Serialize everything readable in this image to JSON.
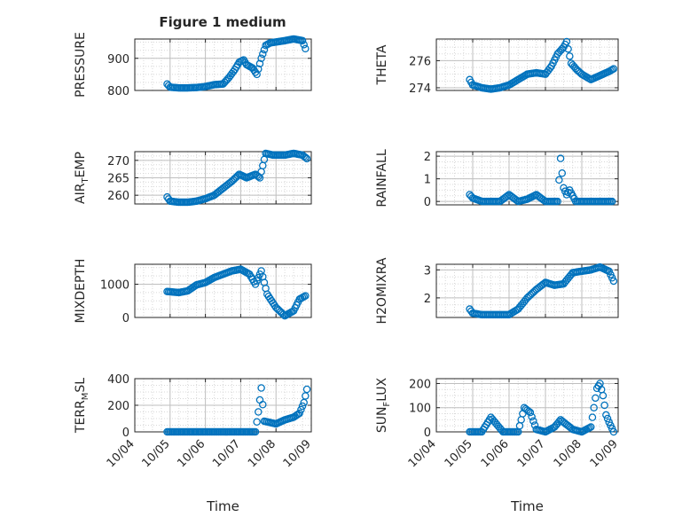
{
  "figure": {
    "title": "Figure 1 medium"
  },
  "colors": {
    "marker": "#0072BD",
    "axis": "#262626",
    "grid": "#bfbfbf",
    "background": "#ffffff"
  },
  "chart_data": [
    {
      "type": "scatter",
      "title": "Figure 1 medium",
      "ylabel": "PRESSURE",
      "xlabel": "",
      "xlim": [
        "10/04",
        "10/09"
      ],
      "ylim": [
        800,
        960
      ],
      "yticks": [
        800,
        900
      ],
      "ytick_labels": [
        "800",
        "900"
      ],
      "grid": true,
      "minor_grid": true,
      "series": [
        {
          "marker": "circle",
          "values": [
            [
              "10/04 22:00",
              820
            ],
            [
              "10/05 00:00",
              810
            ],
            [
              "10/05 06:00",
              808
            ],
            [
              "10/05 12:00",
              808
            ],
            [
              "10/05 18:00",
              809
            ],
            [
              "10/06 00:00",
              812
            ],
            [
              "10/06 06:00",
              818
            ],
            [
              "10/06 12:00",
              820
            ],
            [
              "10/06 16:00",
              840
            ],
            [
              "10/06 20:00",
              865
            ],
            [
              "10/06 23:00",
              888
            ],
            [
              "10/07 02:00",
              895
            ],
            [
              "10/07 04:00",
              880
            ],
            [
              "10/07 08:00",
              870
            ],
            [
              "10/07 11:00",
              850
            ],
            [
              "10/07 14:00",
              900
            ],
            [
              "10/07 17:00",
              940
            ],
            [
              "10/07 20:00",
              948
            ],
            [
              "10/07 23:00",
              950
            ],
            [
              "10/08 06:00",
              955
            ],
            [
              "10/08 12:00",
              960
            ],
            [
              "10/08 18:00",
              955
            ],
            [
              "10/08 20:00",
              930
            ]
          ]
        }
      ]
    },
    {
      "type": "scatter",
      "ylabel": "THETA",
      "xlabel": "",
      "xlim": [
        "10/04",
        "10/09"
      ],
      "ylim": [
        273.8,
        277.6
      ],
      "yticks": [
        274,
        276
      ],
      "ytick_labels": [
        "274",
        "276"
      ],
      "grid": true,
      "minor_grid": true,
      "series": [
        {
          "marker": "circle",
          "values": [
            [
              "10/04 22:00",
              274.6
            ],
            [
              "10/05 00:00",
              274.2
            ],
            [
              "10/05 06:00",
              274.0
            ],
            [
              "10/05 12:00",
              273.9
            ],
            [
              "10/05 18:00",
              274.0
            ],
            [
              "10/06 00:00",
              274.2
            ],
            [
              "10/06 06:00",
              274.6
            ],
            [
              "10/06 12:00",
              275.0
            ],
            [
              "10/06 18:00",
              275.1
            ],
            [
              "10/07 00:00",
              275.0
            ],
            [
              "10/07 04:00",
              275.6
            ],
            [
              "10/07 08:00",
              276.5
            ],
            [
              "10/07 12:00",
              277.0
            ],
            [
              "10/07 14:00",
              277.4
            ],
            [
              "10/07 17:00",
              275.8
            ],
            [
              "10/07 21:00",
              275.3
            ],
            [
              "10/08 00:00",
              275.0
            ],
            [
              "10/08 06:00",
              274.6
            ],
            [
              "10/08 12:00",
              274.9
            ],
            [
              "10/08 18:00",
              275.2
            ],
            [
              "10/08 21:00",
              275.4
            ]
          ]
        }
      ]
    },
    {
      "type": "scatter",
      "ylabel": "AIR_TEMP",
      "ylabel_main": "AIR",
      "ylabel_sub": "T",
      "ylabel_rest": "EMP",
      "xlabel": "",
      "xlim": [
        "10/04",
        "10/09"
      ],
      "ylim": [
        257.5,
        272.5
      ],
      "yticks": [
        260,
        265,
        270
      ],
      "ytick_labels": [
        "260",
        "265",
        "270"
      ],
      "grid": true,
      "minor_grid": true,
      "series": [
        {
          "marker": "circle",
          "values": [
            [
              "10/04 22:00",
              259.5
            ],
            [
              "10/05 00:00",
              258.3
            ],
            [
              "10/05 06:00",
              258.0
            ],
            [
              "10/05 12:00",
              258.0
            ],
            [
              "10/05 18:00",
              258.3
            ],
            [
              "10/06 00:00",
              259.0
            ],
            [
              "10/06 06:00",
              260.0
            ],
            [
              "10/06 12:00",
              262.0
            ],
            [
              "10/06 18:00",
              264.0
            ],
            [
              "10/06 23:00",
              266.0
            ],
            [
              "10/07 04:00",
              265.0
            ],
            [
              "10/07 10:00",
              266.0
            ],
            [
              "10/07 13:00",
              265.0
            ],
            [
              "10/07 17:00",
              272.0
            ],
            [
              "10/07 22:00",
              271.5
            ],
            [
              "10/08 06:00",
              271.5
            ],
            [
              "10/08 12:00",
              272.0
            ],
            [
              "10/08 18:00",
              271.5
            ],
            [
              "10/08 21:00",
              270.5
            ]
          ]
        }
      ]
    },
    {
      "type": "scatter",
      "ylabel": "RAINFALL",
      "xlabel": "",
      "xlim": [
        "10/04",
        "10/09"
      ],
      "ylim": [
        -0.15,
        2.2
      ],
      "yticks": [
        0,
        1,
        2
      ],
      "ytick_labels": [
        "0",
        "1",
        "2"
      ],
      "grid": true,
      "minor_grid": true,
      "series": [
        {
          "marker": "circle",
          "values": [
            [
              "10/04 22:00",
              0.3
            ],
            [
              "10/05 00:00",
              0.15
            ],
            [
              "10/05 06:00",
              0
            ],
            [
              "10/05 12:00",
              0
            ],
            [
              "10/05 18:00",
              0
            ],
            [
              "10/06 00:00",
              0.3
            ],
            [
              "10/06 06:00",
              0
            ],
            [
              "10/06 12:00",
              0.1
            ],
            [
              "10/06 18:00",
              0.3
            ],
            [
              "10/07 00:00",
              0
            ],
            [
              "10/07 08:00",
              0
            ],
            [
              "10/07 10:00",
              1.9
            ],
            [
              "10/07 12:00",
              0.6
            ],
            [
              "10/07 14:00",
              0.3
            ],
            [
              "10/07 16:00",
              0.5
            ],
            [
              "10/07 20:00",
              0
            ],
            [
              "10/08 06:00",
              0
            ],
            [
              "10/08 12:00",
              0
            ],
            [
              "10/08 20:00",
              0
            ]
          ]
        }
      ]
    },
    {
      "type": "scatter",
      "ylabel": "MIXDEPTH",
      "xlabel": "",
      "xlim": [
        "10/04",
        "10/09"
      ],
      "ylim": [
        0,
        1600
      ],
      "yticks": [
        0,
        1000
      ],
      "ytick_labels": [
        "0",
        "1000"
      ],
      "grid": true,
      "minor_grid": true,
      "series": [
        {
          "marker": "circle",
          "values": [
            [
              "10/04 22:00",
              780
            ],
            [
              "10/05 06:00",
              750
            ],
            [
              "10/05 12:00",
              800
            ],
            [
              "10/05 18:00",
              980
            ],
            [
              "10/06 00:00",
              1050
            ],
            [
              "10/06 06:00",
              1200
            ],
            [
              "10/06 12:00",
              1300
            ],
            [
              "10/06 18:00",
              1400
            ],
            [
              "10/07 00:00",
              1450
            ],
            [
              "10/07 06:00",
              1300
            ],
            [
              "10/07 10:00",
              1000
            ],
            [
              "10/07 14:00",
              1400
            ],
            [
              "10/07 18:00",
              700
            ],
            [
              "10/08 00:00",
              300
            ],
            [
              "10/08 06:00",
              50
            ],
            [
              "10/08 12:00",
              200
            ],
            [
              "10/08 16:00",
              550
            ],
            [
              "10/08 20:00",
              650
            ]
          ]
        }
      ]
    },
    {
      "type": "scatter",
      "ylabel": "H2OMIXRA",
      "xlabel": "",
      "xlim": [
        "10/04",
        "10/09"
      ],
      "ylim": [
        1.3,
        3.2
      ],
      "yticks": [
        2,
        3
      ],
      "ytick_labels": [
        "2",
        "3"
      ],
      "grid": true,
      "minor_grid": true,
      "series": [
        {
          "marker": "circle",
          "values": [
            [
              "10/04 22:00",
              1.6
            ],
            [
              "10/05 00:00",
              1.45
            ],
            [
              "10/05 06:00",
              1.4
            ],
            [
              "10/05 12:00",
              1.4
            ],
            [
              "10/05 18:00",
              1.4
            ],
            [
              "10/06 00:00",
              1.4
            ],
            [
              "10/06 06:00",
              1.6
            ],
            [
              "10/06 12:00",
              2.0
            ],
            [
              "10/06 18:00",
              2.3
            ],
            [
              "10/07 00:00",
              2.55
            ],
            [
              "10/07 06:00",
              2.45
            ],
            [
              "10/07 12:00",
              2.5
            ],
            [
              "10/07 18:00",
              2.9
            ],
            [
              "10/08 00:00",
              2.95
            ],
            [
              "10/08 06:00",
              3.0
            ],
            [
              "10/08 12:00",
              3.1
            ],
            [
              "10/08 18:00",
              2.95
            ],
            [
              "10/08 21:00",
              2.6
            ]
          ]
        }
      ]
    },
    {
      "type": "scatter",
      "ylabel": "TERR_MSL",
      "ylabel_main": "TERR",
      "ylabel_sub": "M",
      "ylabel_rest": "SL",
      "xlabel": "Time",
      "xlim": [
        "10/04",
        "10/09"
      ],
      "ylim": [
        0,
        400
      ],
      "xticks": [
        "10/04",
        "10/05",
        "10/06",
        "10/07",
        "10/08",
        "10/09"
      ],
      "yticks": [
        0,
        200,
        400
      ],
      "ytick_labels": [
        "0",
        "200",
        "400"
      ],
      "grid": true,
      "minor_grid": true,
      "series": [
        {
          "marker": "circle",
          "values": [
            [
              "10/04 22:00",
              0
            ],
            [
              "10/05 06:00",
              0
            ],
            [
              "10/05 12:00",
              0
            ],
            [
              "10/05 18:00",
              0
            ],
            [
              "10/06 00:00",
              0
            ],
            [
              "10/06 06:00",
              0
            ],
            [
              "10/06 12:00",
              0
            ],
            [
              "10/06 18:00",
              0
            ],
            [
              "10/07 00:00",
              0
            ],
            [
              "10/07 06:00",
              0
            ],
            [
              "10/07 10:00",
              0
            ],
            [
              "10/07 12:00",
              150
            ],
            [
              "10/07 14:00",
              330
            ],
            [
              "10/07 16:00",
              80
            ],
            [
              "10/08 00:00",
              60
            ],
            [
              "10/08 06:00",
              90
            ],
            [
              "10/08 12:00",
              110
            ],
            [
              "10/08 16:00",
              140
            ],
            [
              "10/08 19:00",
              220
            ],
            [
              "10/08 21:00",
              320
            ]
          ]
        }
      ]
    },
    {
      "type": "scatter",
      "ylabel": "SUN_FLUX",
      "ylabel_main": "SUN",
      "ylabel_sub": "F",
      "ylabel_rest": "LUX",
      "xlabel": "Time",
      "xlim": [
        "10/04",
        "10/09"
      ],
      "ylim": [
        0,
        220
      ],
      "xticks": [
        "10/04",
        "10/05",
        "10/06",
        "10/07",
        "10/08",
        "10/09"
      ],
      "yticks": [
        0,
        100,
        200
      ],
      "ytick_labels": [
        "0",
        "100",
        "200"
      ],
      "grid": true,
      "minor_grid": true,
      "series": [
        {
          "marker": "circle",
          "values": [
            [
              "10/04 22:00",
              0
            ],
            [
              "10/05 06:00",
              0
            ],
            [
              "10/05 12:00",
              60
            ],
            [
              "10/05 16:00",
              30
            ],
            [
              "10/05 20:00",
              0
            ],
            [
              "10/06 06:00",
              0
            ],
            [
              "10/06 10:00",
              100
            ],
            [
              "10/06 14:00",
              80
            ],
            [
              "10/06 18:00",
              10
            ],
            [
              "10/07 00:00",
              0
            ],
            [
              "10/07 06:00",
              20
            ],
            [
              "10/07 10:00",
              50
            ],
            [
              "10/07 14:00",
              30
            ],
            [
              "10/07 18:00",
              10
            ],
            [
              "10/08 00:00",
              0
            ],
            [
              "10/08 06:00",
              20
            ],
            [
              "10/08 10:00",
              180
            ],
            [
              "10/08 12:00",
              200
            ],
            [
              "10/08 14:00",
              150
            ],
            [
              "10/08 16:00",
              70
            ],
            [
              "10/08 18:00",
              40
            ],
            [
              "10/08 21:00",
              0
            ]
          ]
        }
      ]
    }
  ]
}
